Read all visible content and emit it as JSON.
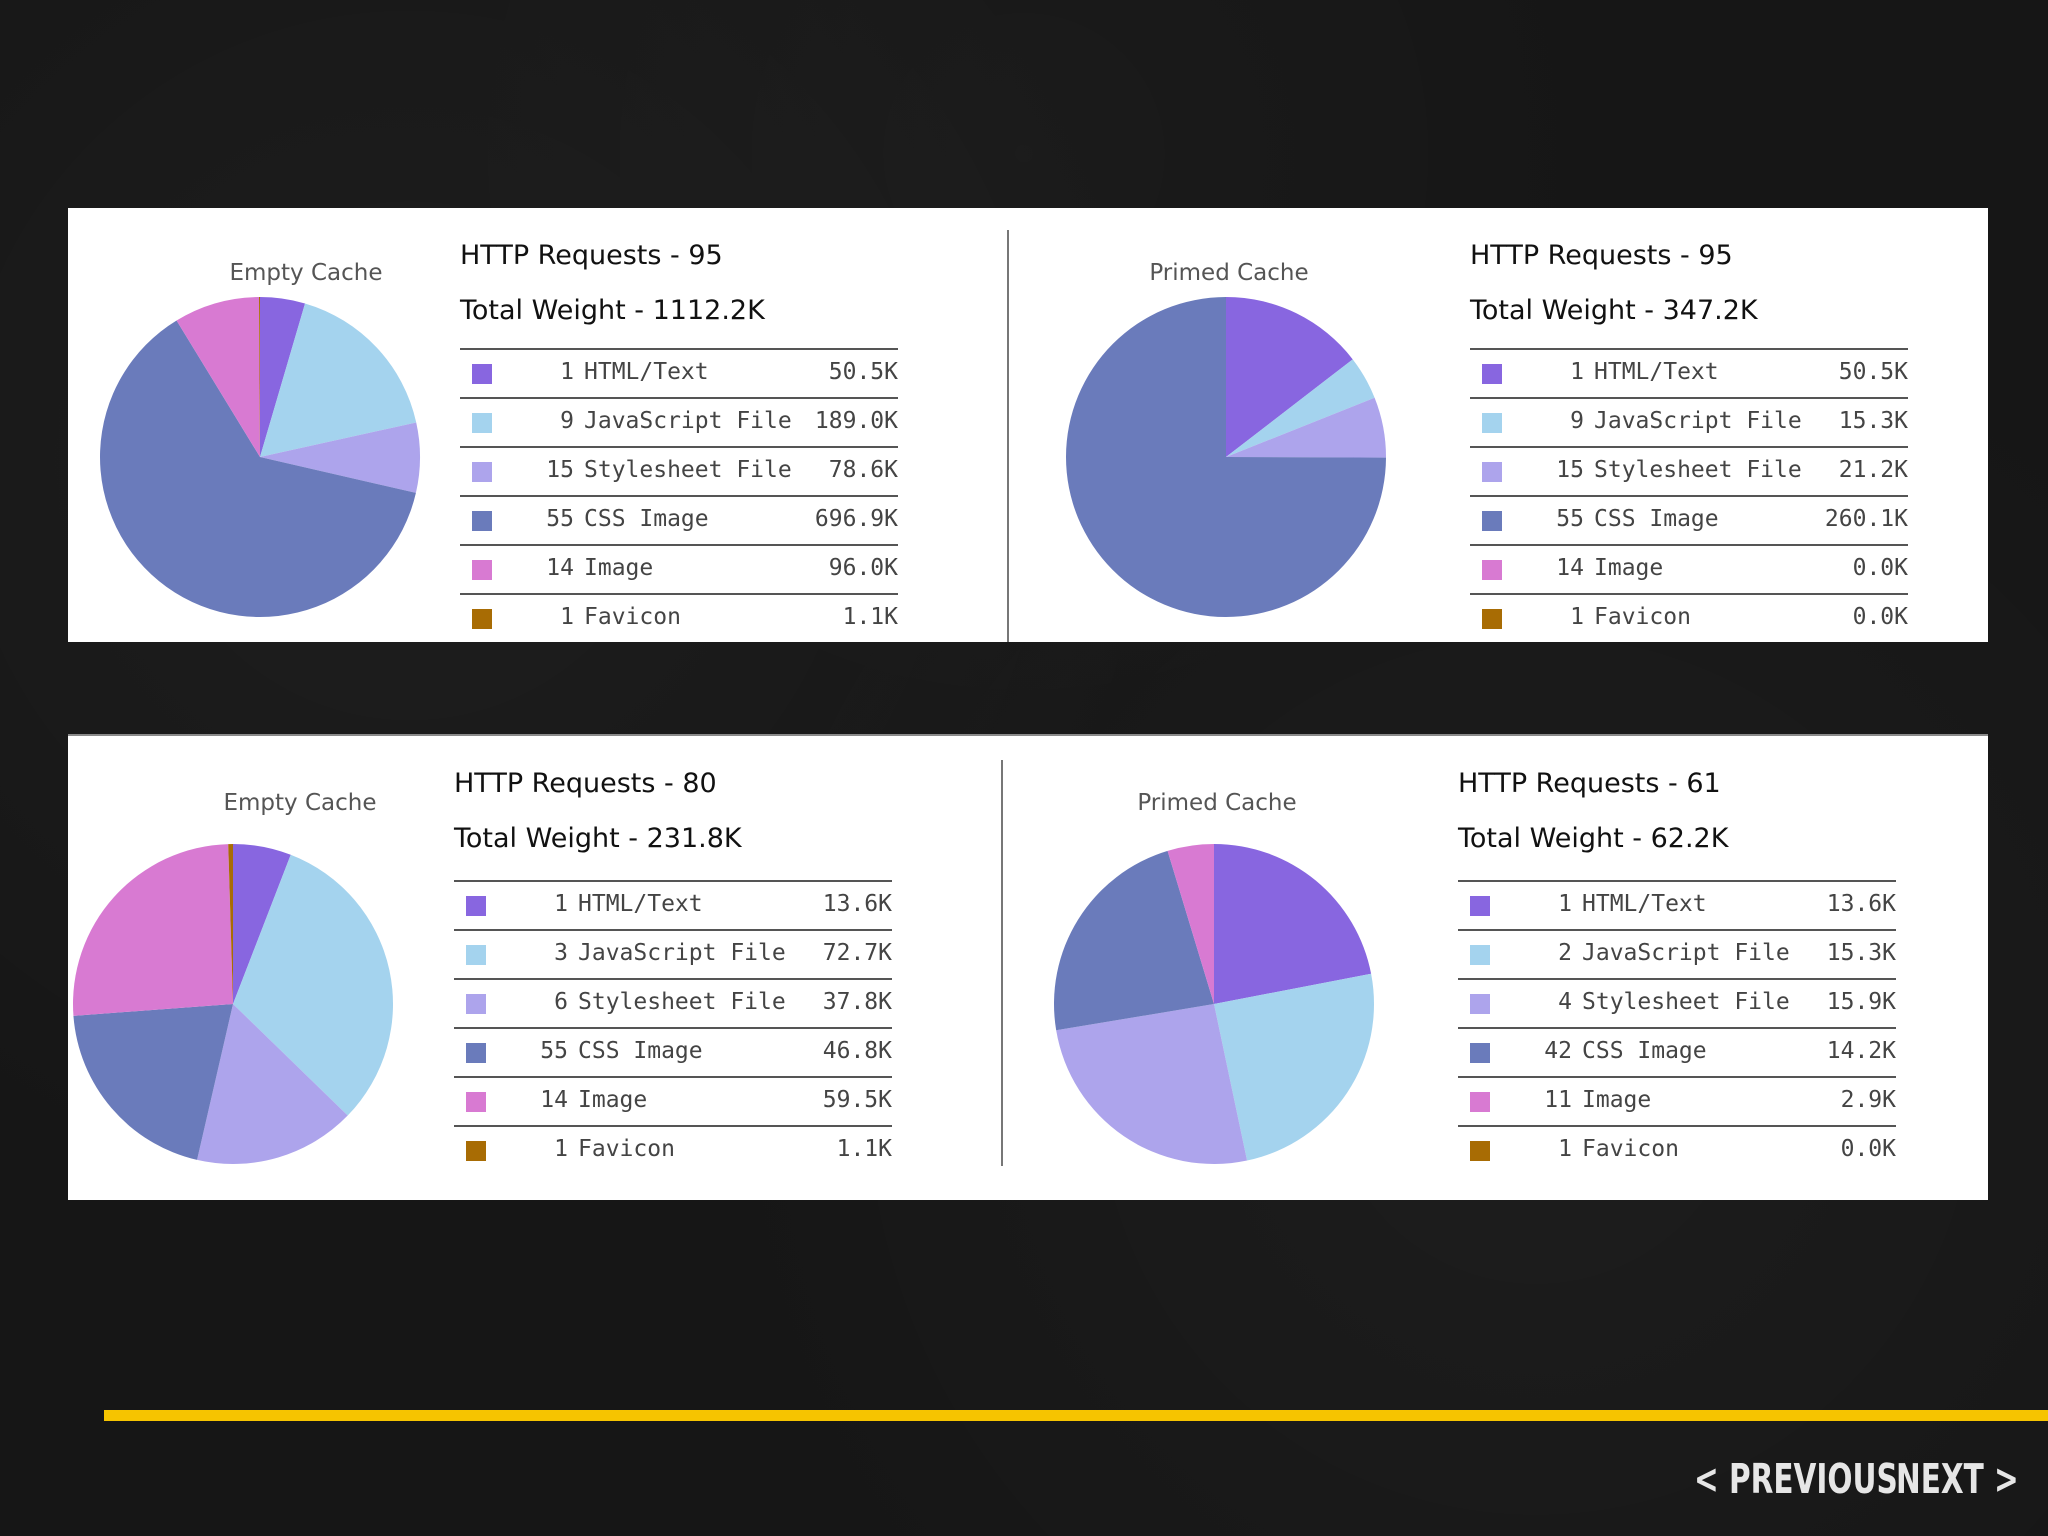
{
  "colors": {
    "html_text": "#8866e0",
    "javascript_file": "#a4d3ee",
    "stylesheet_file": "#ada4ec",
    "css_image": "#6a7bbb",
    "image": "#d87ad2",
    "favicon": "#a86c04"
  },
  "chart_data": [
    {
      "type": "pie",
      "title": "Empty Cache",
      "http_requests": "HTTP Requests - 95",
      "total_weight": "Total Weight - 1112.2K",
      "slices": [
        {
          "count": "1",
          "label": "HTML/Text",
          "size": "50.5K",
          "value": 50.5,
          "color_key": "html_text"
        },
        {
          "count": "9",
          "label": "JavaScript File",
          "size": "189.0K",
          "value": 189.0,
          "color_key": "javascript_file"
        },
        {
          "count": "15",
          "label": "Stylesheet File",
          "size": "78.6K",
          "value": 78.6,
          "color_key": "stylesheet_file"
        },
        {
          "count": "55",
          "label": "CSS Image",
          "size": "696.9K",
          "value": 696.9,
          "color_key": "css_image"
        },
        {
          "count": "14",
          "label": "Image",
          "size": "96.0K",
          "value": 96.0,
          "color_key": "image"
        },
        {
          "count": "1",
          "label": "Favicon",
          "size": "1.1K",
          "value": 1.1,
          "color_key": "favicon"
        }
      ]
    },
    {
      "type": "pie",
      "title": "Primed Cache",
      "http_requests": "HTTP Requests - 95",
      "total_weight": "Total Weight - 347.2K",
      "slices": [
        {
          "count": "1",
          "label": "HTML/Text",
          "size": "50.5K",
          "value": 50.5,
          "color_key": "html_text"
        },
        {
          "count": "9",
          "label": "JavaScript File",
          "size": "15.3K",
          "value": 15.3,
          "color_key": "javascript_file"
        },
        {
          "count": "15",
          "label": "Stylesheet File",
          "size": "21.2K",
          "value": 21.2,
          "color_key": "stylesheet_file"
        },
        {
          "count": "55",
          "label": "CSS Image",
          "size": "260.1K",
          "value": 260.1,
          "color_key": "css_image"
        },
        {
          "count": "14",
          "label": "Image",
          "size": "0.0K",
          "value": 0.0,
          "color_key": "image"
        },
        {
          "count": "1",
          "label": "Favicon",
          "size": "0.0K",
          "value": 0.0,
          "color_key": "favicon"
        }
      ]
    },
    {
      "type": "pie",
      "title": "Empty Cache",
      "http_requests": "HTTP Requests - 80",
      "total_weight": "Total Weight - 231.8K",
      "slices": [
        {
          "count": "1",
          "label": "HTML/Text",
          "size": "13.6K",
          "value": 13.6,
          "color_key": "html_text"
        },
        {
          "count": "3",
          "label": "JavaScript File",
          "size": "72.7K",
          "value": 72.7,
          "color_key": "javascript_file"
        },
        {
          "count": "6",
          "label": "Stylesheet File",
          "size": "37.8K",
          "value": 37.8,
          "color_key": "stylesheet_file"
        },
        {
          "count": "55",
          "label": "CSS Image",
          "size": "46.8K",
          "value": 46.8,
          "color_key": "css_image"
        },
        {
          "count": "14",
          "label": "Image",
          "size": "59.5K",
          "value": 59.5,
          "color_key": "image"
        },
        {
          "count": "1",
          "label": "Favicon",
          "size": "1.1K",
          "value": 1.1,
          "color_key": "favicon"
        }
      ]
    },
    {
      "type": "pie",
      "title": "Primed Cache",
      "http_requests": "HTTP Requests - 61",
      "total_weight": "Total Weight - 62.2K",
      "slices": [
        {
          "count": "1",
          "label": "HTML/Text",
          "size": "13.6K",
          "value": 13.6,
          "color_key": "html_text"
        },
        {
          "count": "2",
          "label": "JavaScript File",
          "size": "15.3K",
          "value": 15.3,
          "color_key": "javascript_file"
        },
        {
          "count": "4",
          "label": "Stylesheet File",
          "size": "15.9K",
          "value": 15.9,
          "color_key": "stylesheet_file"
        },
        {
          "count": "42",
          "label": "CSS Image",
          "size": "14.2K",
          "value": 14.2,
          "color_key": "css_image"
        },
        {
          "count": "11",
          "label": "Image",
          "size": "2.9K",
          "value": 2.9,
          "color_key": "image"
        },
        {
          "count": "1",
          "label": "Favicon",
          "size": "0.0K",
          "value": 0.0,
          "color_key": "favicon"
        }
      ]
    }
  ],
  "nav": {
    "previous_label": "PREVIOUS",
    "next_label": "NEXT"
  }
}
